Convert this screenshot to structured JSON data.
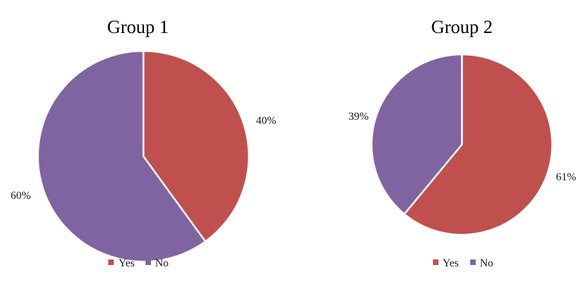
{
  "colors": {
    "yes": "#c0504d",
    "no": "#8064a2",
    "separator": "#ffffff"
  },
  "chart_data": [
    {
      "type": "pie",
      "title": "Group 1",
      "categories": [
        "Yes",
        "No"
      ],
      "values": [
        40,
        60
      ],
      "labels": [
        "40%",
        "60%"
      ],
      "legend": {
        "placement": "bottom",
        "entries": [
          "Yes",
          "No"
        ]
      }
    },
    {
      "type": "pie",
      "title": "Group 2",
      "categories": [
        "Yes",
        "No"
      ],
      "values": [
        61,
        39
      ],
      "labels": [
        "61%",
        "39%"
      ],
      "legend": {
        "placement": "bottom",
        "entries": [
          "Yes",
          "No"
        ]
      }
    }
  ]
}
